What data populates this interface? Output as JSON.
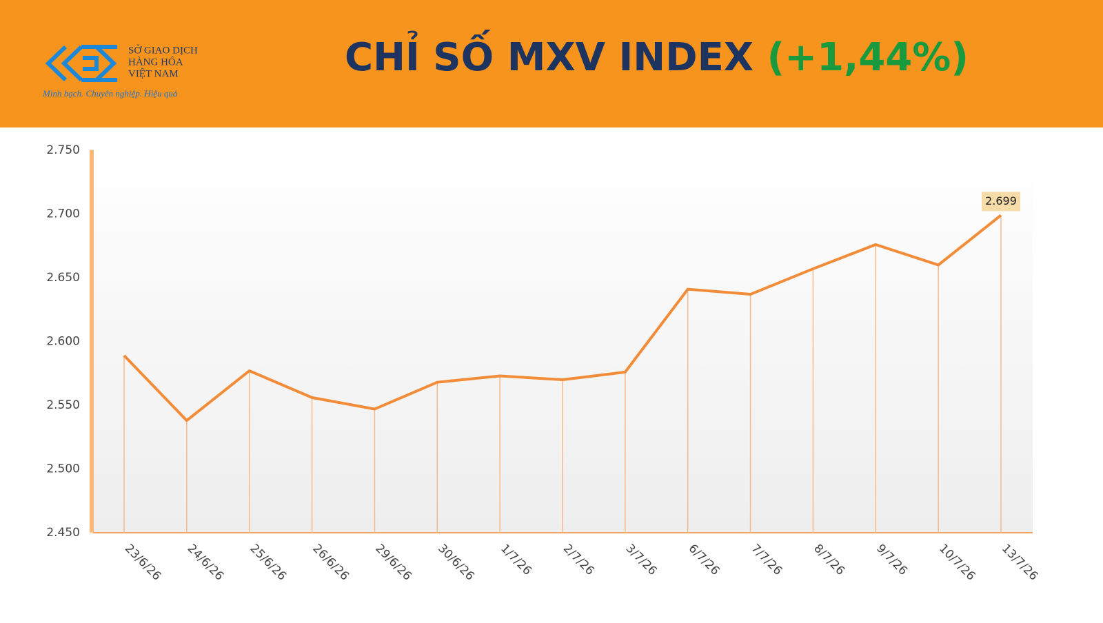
{
  "header": {
    "logo_lines": [
      "SỞ GIAO DỊCH",
      "HÀNG HÓA",
      "VIỆT NAM"
    ],
    "tagline": "Minh bạch. Chuyên nghiệp. Hiệu quả",
    "title": "CHỈ SỐ MXV INDEX",
    "change": "(+1,44%)"
  },
  "chart_data": {
    "type": "line",
    "categories": [
      "23/6/26",
      "24/6/26",
      "25/6/26",
      "26/6/26",
      "29/6/26",
      "30/6/26",
      "1/7/26",
      "2/7/26",
      "3/7/26",
      "6/7/26",
      "7/7/26",
      "8/7/26",
      "9/7/26",
      "10/7/26",
      "13/7/26"
    ],
    "values": [
      2589,
      2538,
      2577,
      2556,
      2547,
      2568,
      2573,
      2570,
      2576,
      2641,
      2637,
      2657,
      2676,
      2660,
      2699
    ],
    "value_labels": [
      null,
      null,
      null,
      null,
      null,
      null,
      null,
      null,
      null,
      null,
      null,
      null,
      null,
      null,
      "2.699"
    ],
    "color": "#f28c38",
    "ylim": [
      2450,
      2750
    ],
    "yticks": [
      {
        "value": 2450,
        "label": "2.450"
      },
      {
        "value": 2500,
        "label": "2.500"
      },
      {
        "value": 2550,
        "label": "2.550"
      },
      {
        "value": 2600,
        "label": "2.600"
      },
      {
        "value": 2650,
        "label": "2.650"
      },
      {
        "value": 2700,
        "label": "2.700"
      },
      {
        "value": 2750,
        "label": "2.750"
      }
    ]
  }
}
